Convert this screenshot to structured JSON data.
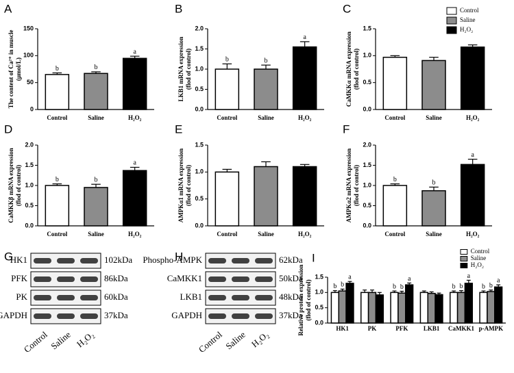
{
  "chart_data": [
    {
      "type": "bar",
      "panel": "A",
      "ylabel": [
        "The content of Ca²⁺ in muscle",
        "(μmol/L)"
      ],
      "categories": [
        "Control",
        "Saline",
        "H₂O₂"
      ],
      "values": [
        65,
        67,
        95
      ],
      "errors": [
        3,
        3,
        4
      ],
      "annotations": [
        "b",
        "b",
        "a"
      ],
      "colors": [
        "#ffffff",
        "#8c8c8c",
        "#000000"
      ],
      "ylim": [
        0,
        150
      ],
      "yticks": [
        0,
        50,
        100,
        150
      ]
    },
    {
      "type": "bar",
      "panel": "B",
      "ylabel": [
        "LKB1 mRNA expression",
        "(flod of control)"
      ],
      "categories": [
        "Control",
        "Saline",
        "H₂O₂"
      ],
      "values": [
        1.0,
        1.0,
        1.55
      ],
      "errors": [
        0.13,
        0.1,
        0.13
      ],
      "annotations": [
        "b",
        "b",
        "a"
      ],
      "colors": [
        "#ffffff",
        "#8c8c8c",
        "#000000"
      ],
      "ylim": [
        0,
        2
      ],
      "yticks": [
        {
          "value": 0,
          "label": "0.0"
        },
        {
          "value": 0.5,
          "label": "0.5"
        },
        {
          "value": 1,
          "label": "1.0"
        },
        {
          "value": 1.5,
          "label": "1.5"
        },
        {
          "value": 2,
          "label": "2.0"
        }
      ]
    },
    {
      "type": "bar",
      "panel": "C",
      "ylabel": [
        "CaMKKα mRNA expression",
        "(flod of control)"
      ],
      "categories": [
        "Control",
        "Saline",
        "H₂O₂"
      ],
      "values": [
        0.97,
        0.91,
        1.16
      ],
      "errors": [
        0.03,
        0.06,
        0.04
      ],
      "colors": [
        "#ffffff",
        "#8c8c8c",
        "#000000"
      ],
      "ylim": [
        0,
        1.5
      ],
      "legend": "top-right",
      "yticks": [
        {
          "value": 0,
          "label": "0.0"
        },
        {
          "value": 0.5,
          "label": "0.5"
        },
        {
          "value": 1,
          "label": "1.0"
        },
        {
          "value": 1.5,
          "label": "1.5"
        }
      ]
    },
    {
      "type": "bar",
      "panel": "D",
      "ylabel": [
        "CaMKKβ mRNA expression",
        "(flod of control)"
      ],
      "categories": [
        "Control",
        "Saline",
        "H₂O₂"
      ],
      "values": [
        1.0,
        0.95,
        1.37
      ],
      "errors": [
        0.04,
        0.08,
        0.08
      ],
      "annotations": [
        "b",
        "b",
        "a"
      ],
      "colors": [
        "#ffffff",
        "#8c8c8c",
        "#000000"
      ],
      "ylim": [
        0,
        2
      ],
      "yticks": [
        {
          "value": 0,
          "label": "0.0"
        },
        {
          "value": 0.5,
          "label": "0.5"
        },
        {
          "value": 1,
          "label": "1.0"
        },
        {
          "value": 1.5,
          "label": "1.5"
        },
        {
          "value": 2,
          "label": "2.0"
        }
      ]
    },
    {
      "type": "bar",
      "panel": "E",
      "ylabel": [
        "AMPKα1 mRNA expression",
        "(flod of control)"
      ],
      "categories": [
        "Control",
        "Saline",
        "H₂O₂"
      ],
      "values": [
        1.0,
        1.1,
        1.1
      ],
      "errors": [
        0.05,
        0.09,
        0.04
      ],
      "colors": [
        "#ffffff",
        "#8c8c8c",
        "#000000"
      ],
      "ylim": [
        0,
        1.5
      ],
      "yticks": [
        {
          "value": 0,
          "label": "0.0"
        },
        {
          "value": 0.5,
          "label": "0.5"
        },
        {
          "value": 1,
          "label": "1.0"
        },
        {
          "value": 1.5,
          "label": "1.5"
        }
      ]
    },
    {
      "type": "bar",
      "panel": "F",
      "ylabel": [
        "AMPKα2 mRNA expression",
        "(flod of control)"
      ],
      "categories": [
        "Control",
        "Saline",
        "H₂O₂"
      ],
      "values": [
        1.0,
        0.87,
        1.52
      ],
      "errors": [
        0.04,
        0.09,
        0.13
      ],
      "annotations": [
        "b",
        "b",
        "a"
      ],
      "colors": [
        "#ffffff",
        "#8c8c8c",
        "#000000"
      ],
      "ylim": [
        0,
        2
      ],
      "yticks": [
        {
          "value": 0,
          "label": "0.0"
        },
        {
          "value": 0.5,
          "label": "0.5"
        },
        {
          "value": 1,
          "label": "1.0"
        },
        {
          "value": 1.5,
          "label": "1.5"
        },
        {
          "value": 2,
          "label": "2.0"
        }
      ]
    },
    {
      "type": "grouped-bar",
      "panel": "I",
      "ylabel": [
        "Relative protein expression",
        "(flod of control)"
      ],
      "categories": [
        "HK1",
        "PK",
        "PFK",
        "LKB1",
        "CaMKK1",
        "p-AMPK"
      ],
      "legend": "top-right",
      "series": [
        {
          "name": "Control",
          "color": "#ffffff",
          "values": [
            1.0,
            1.0,
            1.0,
            1.0,
            1.0,
            1.0
          ],
          "errors": [
            0.06,
            0.08,
            0.05,
            0.05,
            0.05,
            0.05
          ],
          "annotations": [
            "b",
            null,
            "b",
            null,
            "b",
            "b"
          ]
        },
        {
          "name": "Saline",
          "color": "#8c8c8c",
          "values": [
            1.05,
            1.0,
            0.98,
            0.97,
            1.0,
            1.03
          ],
          "errors": [
            0.06,
            0.08,
            0.06,
            0.05,
            0.06,
            0.05
          ],
          "annotations": [
            "b",
            null,
            "b",
            null,
            "b",
            "b"
          ]
        },
        {
          "name": "H₂O₂",
          "color": "#000000",
          "values": [
            1.3,
            0.92,
            1.25,
            0.93,
            1.3,
            1.18
          ],
          "errors": [
            0.06,
            0.08,
            0.06,
            0.05,
            0.1,
            0.07
          ],
          "annotations": [
            "a",
            null,
            "a",
            null,
            "a",
            "a"
          ]
        }
      ],
      "ylim": [
        0,
        1.5
      ],
      "yticks": [
        {
          "value": 0,
          "label": "0.0"
        },
        {
          "value": 0.5,
          "label": "0.5"
        },
        {
          "value": 1,
          "label": "1.0"
        },
        {
          "value": 1.5,
          "label": "1.5"
        }
      ]
    }
  ],
  "blot_panels": [
    {
      "panel": "G",
      "lanes": [
        "Control",
        "Saline",
        "H₂O₂"
      ],
      "rows": [
        {
          "label": "HK1",
          "size": "102kDa"
        },
        {
          "label": "PFK",
          "size": "86kDa"
        },
        {
          "label": "PK",
          "size": "60kDa"
        },
        {
          "label": "GAPDH",
          "size": "37kDa"
        }
      ]
    },
    {
      "panel": "H",
      "lanes": [
        "Control",
        "Saline",
        "H₂O₂"
      ],
      "rows": [
        {
          "label": "Phospho-AMPK",
          "size": "62kDa"
        },
        {
          "label": "CaMKK1",
          "size": "50kDa"
        },
        {
          "label": "LKB1",
          "size": "48kDa"
        },
        {
          "label": "GAPDH",
          "size": "37kDa"
        }
      ]
    }
  ]
}
